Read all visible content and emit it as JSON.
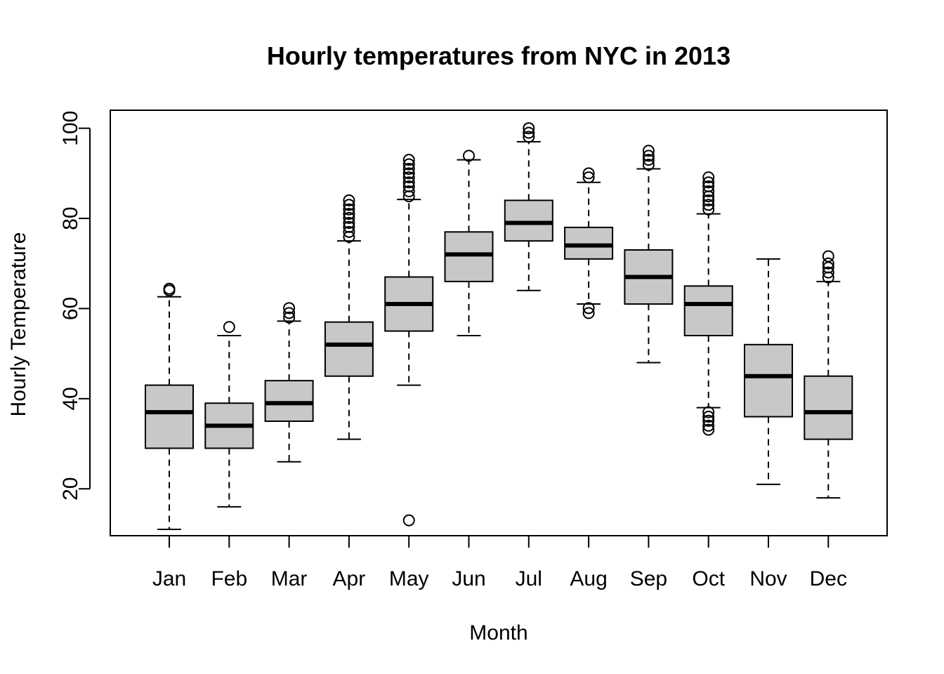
{
  "chart_data": {
    "type": "boxplot",
    "title": "Hourly temperatures from NYC in 2013",
    "xlabel": "Month",
    "ylabel": "Hourly Temperature",
    "ylim": [
      9.6,
      104.0
    ],
    "yticks": [
      20,
      40,
      60,
      80,
      100
    ],
    "grid": false,
    "colors": {
      "box_fill": "#c8c8c8",
      "stroke": "#000000"
    },
    "categories": [
      "Jan",
      "Feb",
      "Mar",
      "Apr",
      "May",
      "Jun",
      "Jul",
      "Aug",
      "Sep",
      "Oct",
      "Nov",
      "Dec"
    ],
    "boxes": [
      {
        "label": "Jan",
        "whisker_low": 11,
        "q1": 29,
        "median": 37,
        "q3": 43,
        "whisker_high": 62.6,
        "outliers": [
          64.0,
          64.4
        ]
      },
      {
        "label": "Feb",
        "whisker_low": 16,
        "q1": 29,
        "median": 34,
        "q3": 39,
        "whisker_high": 54,
        "outliers": [
          55.9
        ]
      },
      {
        "label": "Mar",
        "whisker_low": 26,
        "q1": 35,
        "median": 39,
        "q3": 44,
        "whisker_high": 57.2,
        "outliers": [
          58.0,
          59.0,
          60.1
        ]
      },
      {
        "label": "Apr",
        "whisker_low": 31,
        "q1": 45,
        "median": 52,
        "q3": 57,
        "whisker_high": 75,
        "outliers": [
          75.9,
          77.0,
          78.1,
          79.0,
          80.1,
          81.0,
          82.0,
          83.0,
          84.0
        ]
      },
      {
        "label": "May",
        "whisker_low": 43,
        "q1": 55,
        "median": 61,
        "q3": 67,
        "whisker_high": 84.2,
        "outliers": [
          13.0,
          84.9,
          86.0,
          87.1,
          88.0,
          89.1,
          90.0,
          91.0,
          92.0,
          93.0
        ]
      },
      {
        "label": "Jun",
        "whisker_low": 54,
        "q1": 66,
        "median": 72,
        "q3": 77,
        "whisker_high": 93.0,
        "outliers": [
          93.9
        ]
      },
      {
        "label": "Jul",
        "whisker_low": 64,
        "q1": 75,
        "median": 79,
        "q3": 84,
        "whisker_high": 97.0,
        "outliers": [
          98.1,
          99.0,
          100.0
        ]
      },
      {
        "label": "Aug",
        "whisker_low": 61,
        "q1": 71,
        "median": 74,
        "q3": 78,
        "whisker_high": 88,
        "outliers": [
          59.0,
          60.1,
          89.1,
          90.0
        ]
      },
      {
        "label": "Sep",
        "whisker_low": 48,
        "q1": 61,
        "median": 67,
        "q3": 73,
        "whisker_high": 91,
        "outliers": [
          91.9,
          93.0,
          93.9,
          95.0
        ]
      },
      {
        "label": "Oct",
        "whisker_low": 38,
        "q1": 54,
        "median": 61,
        "q3": 65,
        "whisker_high": 81,
        "outliers": [
          33.1,
          34.0,
          35.1,
          36.0,
          37.0,
          82.0,
          83.0,
          84.0,
          84.9,
          86.0,
          87.1,
          88.0,
          89.1
        ]
      },
      {
        "label": "Nov",
        "whisker_low": 21,
        "q1": 36,
        "median": 45,
        "q3": 52,
        "whisker_high": 71,
        "outliers": []
      },
      {
        "label": "Dec",
        "whisker_low": 18,
        "q1": 31,
        "median": 37,
        "q3": 45,
        "whisker_high": 66,
        "outliers": [
          66.9,
          68.0,
          69.1,
          70.0,
          71.6
        ]
      }
    ]
  }
}
